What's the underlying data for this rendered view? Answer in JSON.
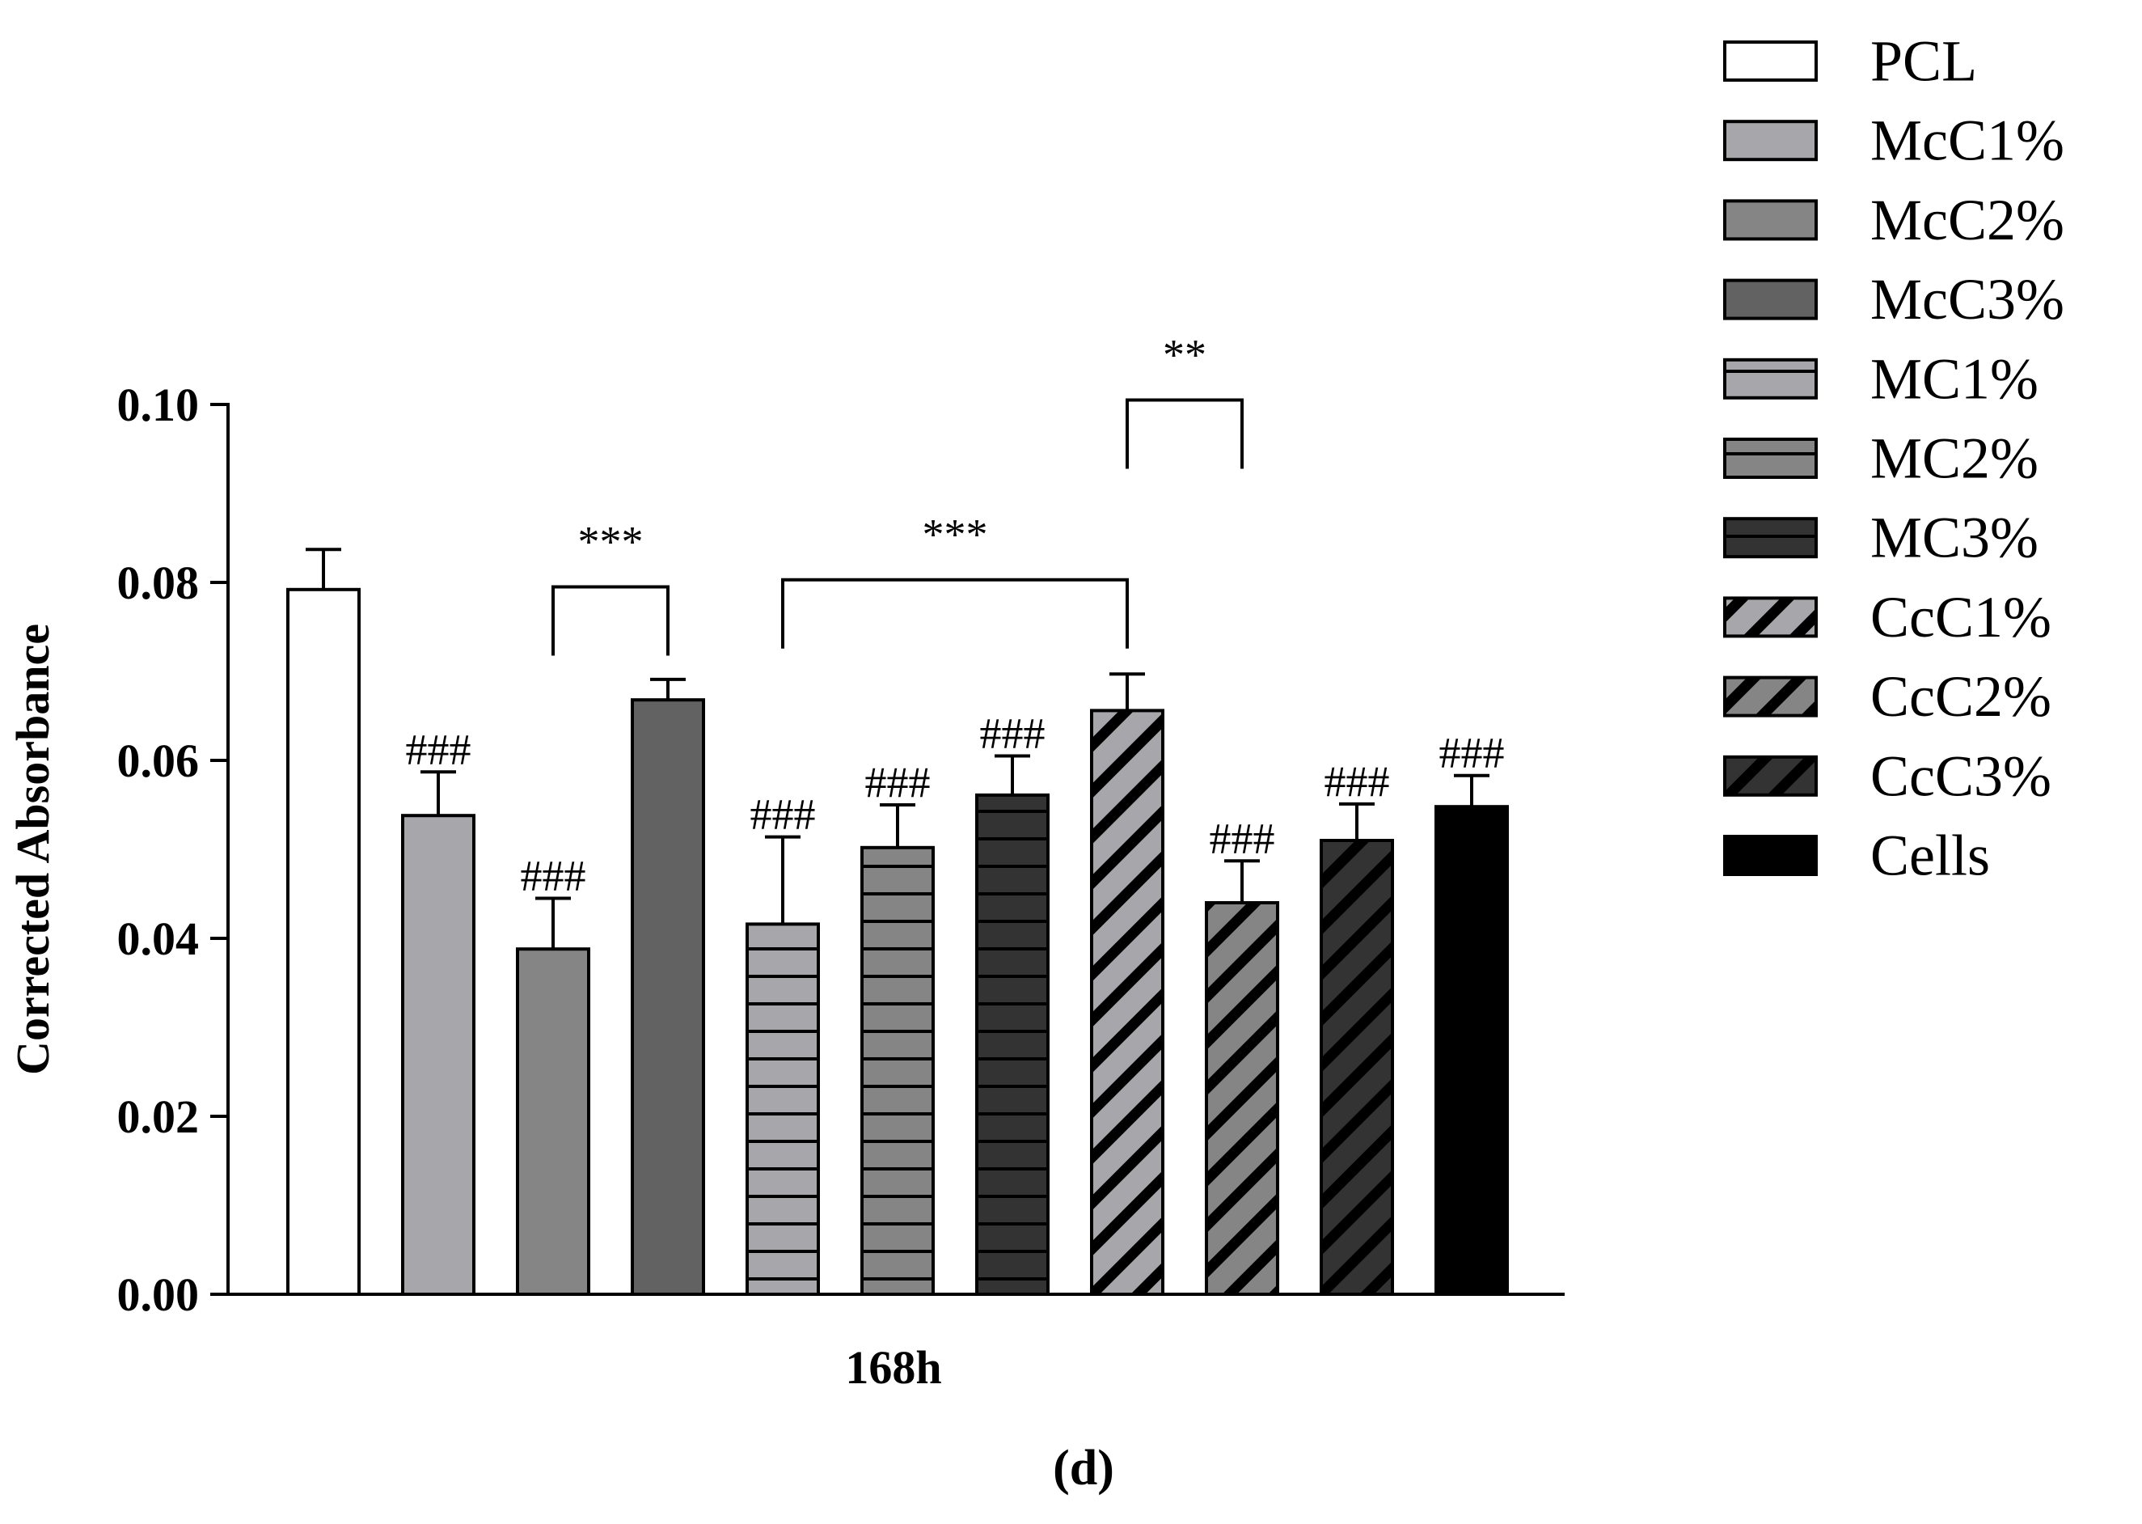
{
  "chart_data": {
    "type": "bar",
    "title": "",
    "ylabel": "Corrected Absorbance",
    "xlabel": "168h",
    "panel_label": "(d)",
    "ylim": [
      0,
      0.1
    ],
    "yticks": [
      "0.00",
      "0.02",
      "0.04",
      "0.06",
      "0.08",
      "0.10"
    ],
    "legend_position": "right",
    "categories": [
      "PCL",
      "McC1%",
      "McC2%",
      "McC3%",
      "MC1%",
      "MC2%",
      "MC3%",
      "CcC1%",
      "CcC2%",
      "CcC3%",
      "Cells"
    ],
    "values": [
      0.0792,
      0.0538,
      0.0388,
      0.0668,
      0.0416,
      0.0502,
      0.0561,
      0.0656,
      0.044,
      0.051,
      0.0548
    ],
    "errors": [
      0.0045,
      0.0049,
      0.0057,
      0.0023,
      0.0098,
      0.0048,
      0.0044,
      0.0041,
      0.0047,
      0.0041,
      0.0035
    ],
    "bar_colors": [
      "#ffffff",
      "#a6a6ab",
      "#858585",
      "#626262",
      "#a6a6ab",
      "#858585",
      "#333333",
      "#a6a6ab",
      "#858585",
      "#333333",
      "#000000"
    ],
    "bar_patterns": [
      "solid",
      "solid",
      "solid",
      "solid",
      "hlines",
      "hlines",
      "hlines",
      "diag",
      "diag",
      "diag",
      "solid"
    ],
    "annotations": [
      "",
      "###",
      "###",
      "",
      "###",
      "###",
      "###",
      "",
      "###",
      "###",
      "###"
    ],
    "brackets": [
      {
        "from": "McC2%",
        "to": "McC3%",
        "label": "***",
        "level": 0.0795
      },
      {
        "from": "MC1%",
        "to": "CcC1%",
        "label": "***",
        "level": 0.0803
      },
      {
        "from": "CcC1%",
        "to": "CcC2%",
        "label": "**",
        "level": 0.1005
      }
    ]
  }
}
